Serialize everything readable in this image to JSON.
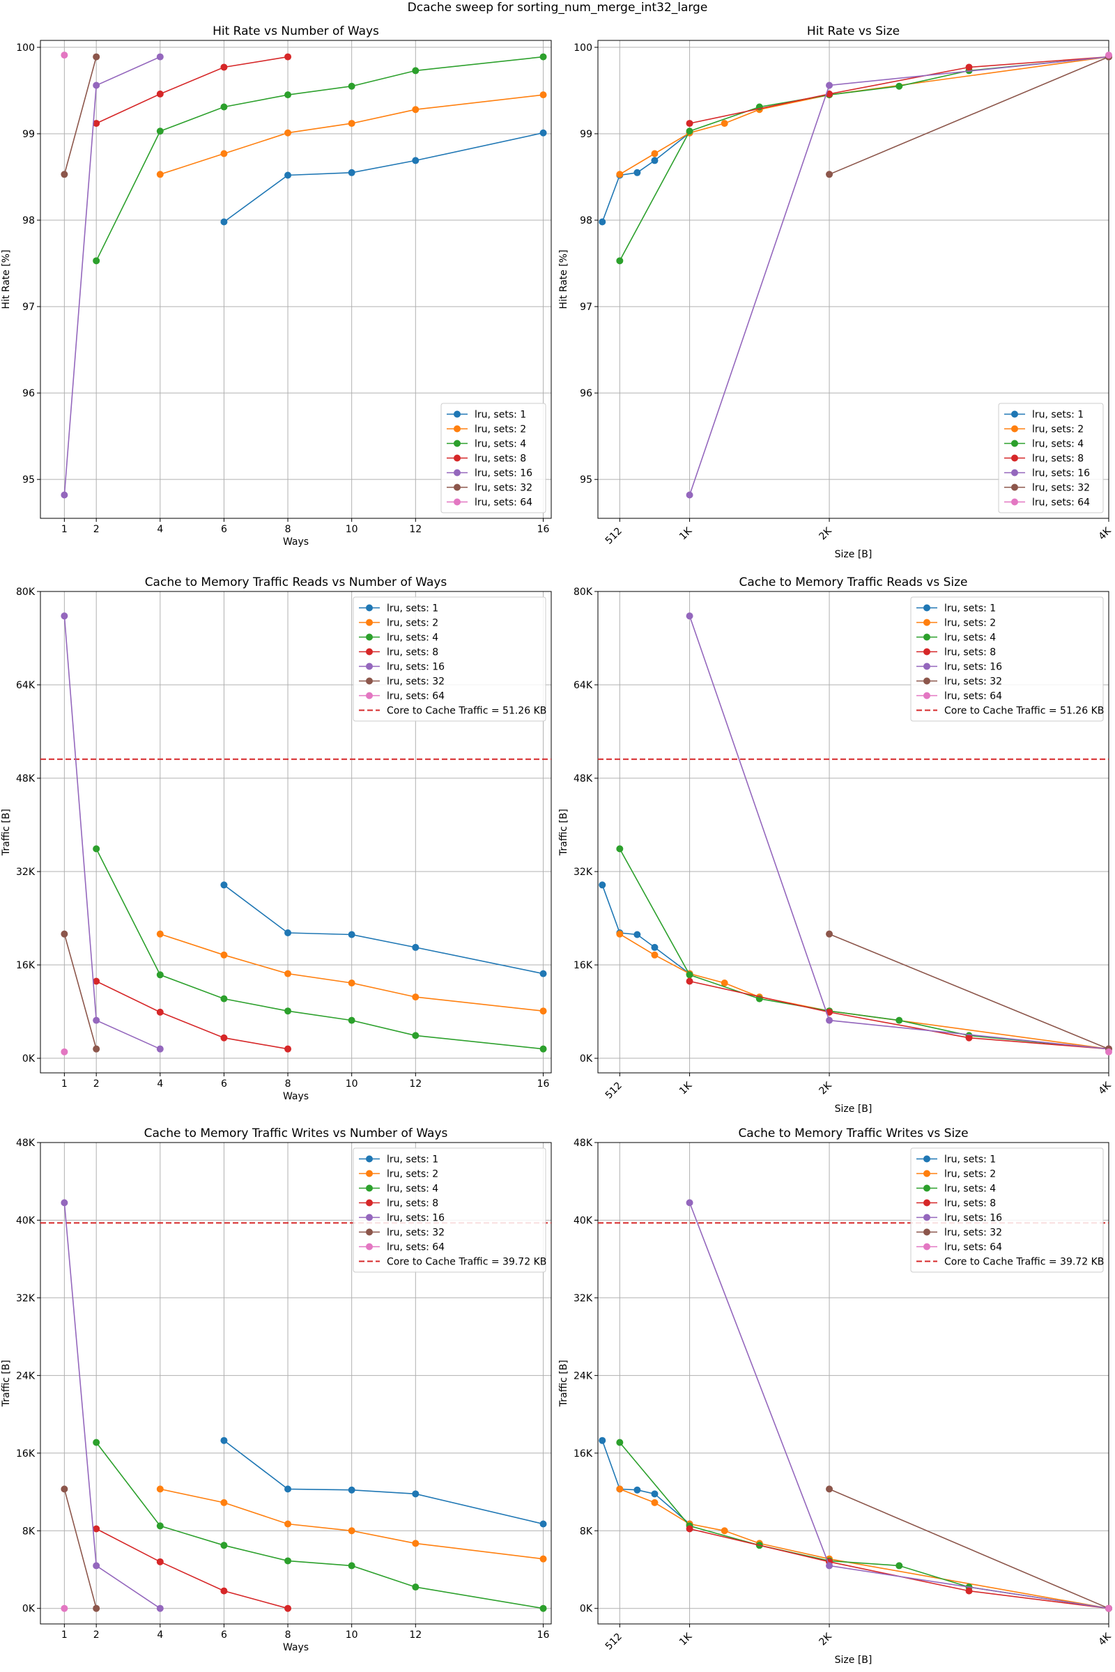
{
  "figure_title": "Dcache sweep for sorting_num_merge_int32_large",
  "colors": {
    "sets_1": "#1f77b4",
    "sets_2": "#ff7f0e",
    "sets_4": "#2ca02c",
    "sets_8": "#d62728",
    "sets_16": "#9467bd",
    "sets_32": "#8c564b",
    "sets_64": "#e377c2",
    "reference": "#d62728"
  },
  "chart_data": [
    {
      "type": "line",
      "title": "Hit Rate vs Number of Ways",
      "xlabel": "Ways",
      "ylabel": "Hit Rate [%]",
      "xlim": [
        0.25,
        16.25
      ],
      "ylim": [
        94.55,
        100.08
      ],
      "x_ticks": [
        1,
        2,
        4,
        6,
        8,
        10,
        12,
        16
      ],
      "x_tick_labels": [
        "1",
        "2",
        "4",
        "6",
        "8",
        "10",
        "12",
        "16"
      ],
      "y_ticks": [
        95,
        96,
        97,
        98,
        99,
        100
      ],
      "y_tick_labels": [
        "95",
        "96",
        "97",
        "98",
        "99",
        "100"
      ],
      "grid": true,
      "legend_position": "lower-right",
      "series": [
        {
          "name": "lru, sets: 1",
          "color": "#1f77b4",
          "x": [
            6,
            8,
            10,
            12,
            16
          ],
          "y": [
            97.98,
            98.52,
            98.55,
            98.69,
            99.01
          ]
        },
        {
          "name": "lru, sets: 2",
          "color": "#ff7f0e",
          "x": [
            4,
            6,
            8,
            10,
            12,
            16
          ],
          "y": [
            98.53,
            98.77,
            99.01,
            99.12,
            99.28,
            99.45
          ]
        },
        {
          "name": "lru, sets: 4",
          "color": "#2ca02c",
          "x": [
            2,
            4,
            6,
            8,
            10,
            12,
            16
          ],
          "y": [
            97.53,
            99.03,
            99.31,
            99.45,
            99.55,
            99.73,
            99.89
          ]
        },
        {
          "name": "lru, sets: 8",
          "color": "#d62728",
          "x": [
            2,
            4,
            6,
            8
          ],
          "y": [
            99.12,
            99.46,
            99.77,
            99.89
          ]
        },
        {
          "name": "lru, sets: 16",
          "color": "#9467bd",
          "x": [
            1,
            2,
            4
          ],
          "y": [
            94.82,
            99.56,
            99.89
          ]
        },
        {
          "name": "lru, sets: 32",
          "color": "#8c564b",
          "x": [
            1,
            2
          ],
          "y": [
            98.53,
            99.89
          ]
        },
        {
          "name": "lru, sets: 64",
          "color": "#e377c2",
          "x": [
            1
          ],
          "y": [
            99.91
          ]
        }
      ]
    },
    {
      "type": "line",
      "title": "Hit Rate vs Size",
      "xlabel": "Size [B]",
      "ylabel": "Hit Rate [%]",
      "xlim": [
        352,
        4096
      ],
      "ylim": [
        94.55,
        100.08
      ],
      "x_ticks": [
        512,
        1024,
        2048,
        4096
      ],
      "x_tick_labels": [
        "512",
        "1K",
        "2K",
        "4K"
      ],
      "x_tick_rotation": 45,
      "y_ticks": [
        95,
        96,
        97,
        98,
        99,
        100
      ],
      "y_tick_labels": [
        "95",
        "96",
        "97",
        "98",
        "99",
        "100"
      ],
      "grid": true,
      "legend_position": "lower-right",
      "series": [
        {
          "name": "lru, sets: 1",
          "color": "#1f77b4",
          "x": [
            384,
            512,
            640,
            768,
            1024
          ],
          "y": [
            97.98,
            98.52,
            98.55,
            98.69,
            99.01
          ]
        },
        {
          "name": "lru, sets: 2",
          "color": "#ff7f0e",
          "x": [
            512,
            768,
            1024,
            1280,
            1536,
            2048,
            4096
          ],
          "y": [
            98.53,
            98.77,
            99.01,
            99.12,
            99.28,
            99.45,
            99.89
          ]
        },
        {
          "name": "lru, sets: 4",
          "color": "#2ca02c",
          "x": [
            512,
            1024,
            1536,
            2048,
            2560,
            3072,
            4096
          ],
          "y": [
            97.53,
            99.03,
            99.31,
            99.45,
            99.55,
            99.73,
            99.89
          ]
        },
        {
          "name": "lru, sets: 8",
          "color": "#d62728",
          "x": [
            1024,
            2048,
            3072,
            4096
          ],
          "y": [
            99.12,
            99.46,
            99.77,
            99.89
          ]
        },
        {
          "name": "lru, sets: 16",
          "color": "#9467bd",
          "x": [
            1024,
            2048,
            4096
          ],
          "y": [
            94.82,
            99.56,
            99.89
          ]
        },
        {
          "name": "lru, sets: 32",
          "color": "#8c564b",
          "x": [
            2048,
            4096
          ],
          "y": [
            98.53,
            99.89
          ]
        },
        {
          "name": "lru, sets: 64",
          "color": "#e377c2",
          "x": [
            4096
          ],
          "y": [
            99.91
          ]
        }
      ]
    },
    {
      "type": "line",
      "title": "Cache to Memory Traffic Reads vs Number of Ways",
      "xlabel": "Ways",
      "ylabel": "Traffic [B]",
      "xlim": [
        0.25,
        16.25
      ],
      "ylim": [
        -2500,
        80000
      ],
      "x_ticks": [
        1,
        2,
        4,
        6,
        8,
        10,
        12,
        16
      ],
      "x_tick_labels": [
        "1",
        "2",
        "4",
        "6",
        "8",
        "10",
        "12",
        "16"
      ],
      "y_ticks": [
        0,
        16000,
        32000,
        48000,
        64000,
        80000
      ],
      "y_tick_labels": [
        "0K",
        "16K",
        "32K",
        "48K",
        "64K",
        "80K"
      ],
      "grid": true,
      "legend_position": "top-right",
      "reference_line": {
        "label": "Core to Cache Traffic = 51.26 KB",
        "y": 51260,
        "color": "#d62728",
        "style": "dashed"
      },
      "series": [
        {
          "name": "lru, sets: 1",
          "color": "#1f77b4",
          "x": [
            6,
            8,
            10,
            12,
            16
          ],
          "y": [
            29700,
            21500,
            21200,
            19000,
            14500
          ]
        },
        {
          "name": "lru, sets: 2",
          "color": "#ff7f0e",
          "x": [
            4,
            6,
            8,
            10,
            12,
            16
          ],
          "y": [
            21300,
            17700,
            14500,
            12900,
            10500,
            8100
          ]
        },
        {
          "name": "lru, sets: 4",
          "color": "#2ca02c",
          "x": [
            2,
            4,
            6,
            8,
            10,
            12,
            16
          ],
          "y": [
            35900,
            14300,
            10200,
            8100,
            6500,
            3900,
            1600
          ]
        },
        {
          "name": "lru, sets: 8",
          "color": "#d62728",
          "x": [
            2,
            4,
            6,
            8
          ],
          "y": [
            13200,
            7900,
            3500,
            1600
          ]
        },
        {
          "name": "lru, sets: 16",
          "color": "#9467bd",
          "x": [
            1,
            2,
            4
          ],
          "y": [
            75800,
            6500,
            1600
          ]
        },
        {
          "name": "lru, sets: 32",
          "color": "#8c564b",
          "x": [
            1,
            2
          ],
          "y": [
            21300,
            1600
          ]
        },
        {
          "name": "lru, sets: 64",
          "color": "#e377c2",
          "x": [
            1
          ],
          "y": [
            1100
          ]
        }
      ]
    },
    {
      "type": "line",
      "title": "Cache to Memory Traffic Reads vs Size",
      "xlabel": "Size [B]",
      "ylabel": "Traffic [B]",
      "xlim": [
        352,
        4096
      ],
      "ylim": [
        -2500,
        80000
      ],
      "x_ticks": [
        512,
        1024,
        2048,
        4096
      ],
      "x_tick_labels": [
        "512",
        "1K",
        "2K",
        "4K"
      ],
      "x_tick_rotation": 45,
      "y_ticks": [
        0,
        16000,
        32000,
        48000,
        64000,
        80000
      ],
      "y_tick_labels": [
        "0K",
        "16K",
        "32K",
        "48K",
        "64K",
        "80K"
      ],
      "grid": true,
      "legend_position": "top-right",
      "reference_line": {
        "label": "Core to Cache Traffic = 51.26 KB",
        "y": 51260,
        "color": "#d62728",
        "style": "dashed"
      },
      "series": [
        {
          "name": "lru, sets: 1",
          "color": "#1f77b4",
          "x": [
            384,
            512,
            640,
            768,
            1024
          ],
          "y": [
            29700,
            21500,
            21200,
            19000,
            14500
          ]
        },
        {
          "name": "lru, sets: 2",
          "color": "#ff7f0e",
          "x": [
            512,
            768,
            1024,
            1280,
            1536,
            2048,
            4096
          ],
          "y": [
            21300,
            17700,
            14500,
            12900,
            10500,
            8100,
            1600
          ]
        },
        {
          "name": "lru, sets: 4",
          "color": "#2ca02c",
          "x": [
            512,
            1024,
            1536,
            2048,
            2560,
            3072,
            4096
          ],
          "y": [
            35900,
            14300,
            10200,
            8100,
            6500,
            3900,
            1600
          ]
        },
        {
          "name": "lru, sets: 8",
          "color": "#d62728",
          "x": [
            1024,
            2048,
            3072,
            4096
          ],
          "y": [
            13200,
            7900,
            3500,
            1600
          ]
        },
        {
          "name": "lru, sets: 16",
          "color": "#9467bd",
          "x": [
            1024,
            2048,
            4096
          ],
          "y": [
            75800,
            6500,
            1600
          ]
        },
        {
          "name": "lru, sets: 32",
          "color": "#8c564b",
          "x": [
            2048,
            4096
          ],
          "y": [
            21300,
            1600
          ]
        },
        {
          "name": "lru, sets: 64",
          "color": "#e377c2",
          "x": [
            4096
          ],
          "y": [
            1100
          ]
        }
      ]
    },
    {
      "type": "line",
      "title": "Cache to Memory Traffic Writes vs Number of Ways",
      "xlabel": "Ways",
      "ylabel": "Traffic [B]",
      "xlim": [
        0.25,
        16.25
      ],
      "ylim": [
        -1600,
        48000
      ],
      "x_ticks": [
        1,
        2,
        4,
        6,
        8,
        10,
        12,
        16
      ],
      "x_tick_labels": [
        "1",
        "2",
        "4",
        "6",
        "8",
        "10",
        "12",
        "16"
      ],
      "y_ticks": [
        0,
        8000,
        16000,
        24000,
        32000,
        40000,
        48000
      ],
      "y_tick_labels": [
        "0K",
        "8K",
        "16K",
        "24K",
        "32K",
        "40K",
        "48K"
      ],
      "grid": true,
      "legend_position": "top-right",
      "reference_line": {
        "label": "Core to Cache Traffic = 39.72 KB",
        "y": 39720,
        "color": "#d62728",
        "style": "dashed"
      },
      "series": [
        {
          "name": "lru, sets: 1",
          "color": "#1f77b4",
          "x": [
            6,
            8,
            10,
            12,
            16
          ],
          "y": [
            17300,
            12300,
            12200,
            11800,
            8700
          ]
        },
        {
          "name": "lru, sets: 2",
          "color": "#ff7f0e",
          "x": [
            4,
            6,
            8,
            10,
            12,
            16
          ],
          "y": [
            12300,
            10900,
            8700,
            8000,
            6700,
            5100
          ]
        },
        {
          "name": "lru, sets: 4",
          "color": "#2ca02c",
          "x": [
            2,
            4,
            6,
            8,
            10,
            12,
            16
          ],
          "y": [
            17100,
            8500,
            6500,
            4900,
            4400,
            2200,
            0
          ]
        },
        {
          "name": "lru, sets: 8",
          "color": "#d62728",
          "x": [
            2,
            4,
            6,
            8
          ],
          "y": [
            8200,
            4800,
            1800,
            0
          ]
        },
        {
          "name": "lru, sets: 16",
          "color": "#9467bd",
          "x": [
            1,
            2,
            4
          ],
          "y": [
            41800,
            4400,
            0
          ]
        },
        {
          "name": "lru, sets: 32",
          "color": "#8c564b",
          "x": [
            1,
            2
          ],
          "y": [
            12300,
            0
          ]
        },
        {
          "name": "lru, sets: 64",
          "color": "#e377c2",
          "x": [
            1
          ],
          "y": [
            0
          ]
        }
      ]
    },
    {
      "type": "line",
      "title": "Cache to Memory Traffic Writes vs Size",
      "xlabel": "Size [B]",
      "ylabel": "Traffic [B]",
      "xlim": [
        352,
        4096
      ],
      "ylim": [
        -1600,
        48000
      ],
      "x_ticks": [
        512,
        1024,
        2048,
        4096
      ],
      "x_tick_labels": [
        "512",
        "1K",
        "2K",
        "4K"
      ],
      "x_tick_rotation": 45,
      "y_ticks": [
        0,
        8000,
        16000,
        24000,
        32000,
        40000,
        48000
      ],
      "y_tick_labels": [
        "0K",
        "8K",
        "16K",
        "24K",
        "32K",
        "40K",
        "48K"
      ],
      "grid": true,
      "legend_position": "top-right",
      "reference_line": {
        "label": "Core to Cache Traffic = 39.72 KB",
        "y": 39720,
        "color": "#d62728",
        "style": "dashed"
      },
      "series": [
        {
          "name": "lru, sets: 1",
          "color": "#1f77b4",
          "x": [
            384,
            512,
            640,
            768,
            1024
          ],
          "y": [
            17300,
            12300,
            12200,
            11800,
            8700
          ]
        },
        {
          "name": "lru, sets: 2",
          "color": "#ff7f0e",
          "x": [
            512,
            768,
            1024,
            1280,
            1536,
            2048,
            4096
          ],
          "y": [
            12300,
            10900,
            8700,
            8000,
            6700,
            5100,
            0
          ]
        },
        {
          "name": "lru, sets: 4",
          "color": "#2ca02c",
          "x": [
            512,
            1024,
            1536,
            2048,
            2560,
            3072,
            4096
          ],
          "y": [
            17100,
            8500,
            6500,
            4900,
            4400,
            2200,
            0
          ]
        },
        {
          "name": "lru, sets: 8",
          "color": "#d62728",
          "x": [
            1024,
            2048,
            3072,
            4096
          ],
          "y": [
            8200,
            4800,
            1800,
            0
          ]
        },
        {
          "name": "lru, sets: 16",
          "color": "#9467bd",
          "x": [
            1024,
            2048,
            4096
          ],
          "y": [
            41800,
            4400,
            0
          ]
        },
        {
          "name": "lru, sets: 32",
          "color": "#8c564b",
          "x": [
            2048,
            4096
          ],
          "y": [
            12300,
            0
          ]
        },
        {
          "name": "lru, sets: 64",
          "color": "#e377c2",
          "x": [
            4096
          ],
          "y": [
            0
          ]
        }
      ]
    }
  ]
}
